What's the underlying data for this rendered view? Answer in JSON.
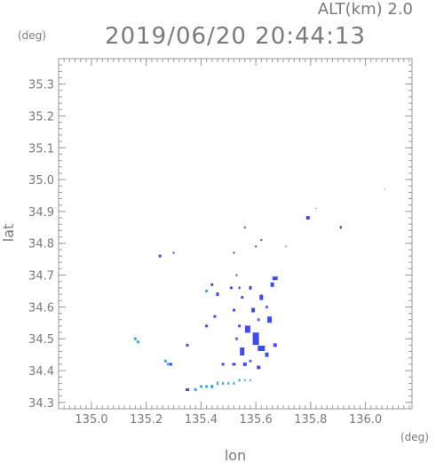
{
  "header": {
    "altitude": "ALT(km)  2.0",
    "datetime": "2019/06/20 20:44:13"
  },
  "chart_data": {
    "type": "scatter",
    "xlabel": "lon",
    "ylabel": "lat",
    "x_unit": "(deg)",
    "y_unit": "(deg)",
    "xlim": [
      134.88,
      136.17
    ],
    "ylim": [
      34.28,
      35.38
    ],
    "xticks": [
      "135.0",
      "135.2",
      "135.4",
      "135.6",
      "135.8",
      "136.0"
    ],
    "yticks": [
      "34.3",
      "34.4",
      "34.5",
      "34.6",
      "34.7",
      "34.8",
      "34.9",
      "35.0",
      "35.1",
      "35.2",
      "35.3"
    ],
    "grid": false,
    "colors": {
      "strong": "#3d4cf0",
      "medium": "#5a6cf5",
      "light": "#38a8ee",
      "dark": "#6a2fa0"
    },
    "series": [
      {
        "points": [
          [
            135.6,
            34.5,
            7,
            14,
            "strong"
          ],
          [
            135.57,
            34.53,
            6,
            8,
            "strong"
          ],
          [
            135.62,
            34.47,
            8,
            6,
            "strong"
          ],
          [
            135.55,
            34.46,
            5,
            9,
            "strong"
          ],
          [
            135.65,
            34.56,
            5,
            7,
            "strong"
          ],
          [
            135.59,
            34.59,
            4,
            5,
            "strong"
          ],
          [
            135.62,
            34.63,
            4,
            6,
            "strong"
          ],
          [
            135.66,
            34.67,
            4,
            5,
            "strong"
          ],
          [
            135.67,
            34.69,
            6,
            4,
            "strong"
          ],
          [
            135.55,
            34.63,
            3,
            3,
            "strong"
          ],
          [
            135.58,
            34.66,
            3,
            4,
            "strong"
          ],
          [
            135.52,
            34.59,
            3,
            3,
            "strong"
          ],
          [
            135.64,
            34.45,
            4,
            5,
            "strong"
          ],
          [
            135.67,
            34.48,
            4,
            4,
            "strong"
          ],
          [
            135.56,
            34.42,
            4,
            4,
            "strong"
          ],
          [
            135.61,
            34.41,
            4,
            4,
            "strong"
          ],
          [
            135.52,
            34.42,
            4,
            3,
            "strong"
          ],
          [
            135.48,
            34.42,
            3,
            3,
            "strong"
          ],
          [
            135.54,
            34.54,
            3,
            3,
            "strong"
          ],
          [
            135.58,
            34.43,
            3,
            3,
            "medium"
          ],
          [
            135.64,
            34.6,
            3,
            3,
            "medium"
          ],
          [
            135.61,
            34.56,
            3,
            3,
            "medium"
          ],
          [
            135.53,
            34.5,
            3,
            3,
            "medium"
          ],
          [
            135.45,
            34.57,
            3,
            3,
            "strong"
          ],
          [
            135.42,
            34.54,
            3,
            3,
            "strong"
          ],
          [
            135.46,
            34.64,
            3,
            4,
            "strong"
          ],
          [
            135.42,
            34.65,
            3,
            3,
            "light"
          ],
          [
            135.44,
            34.67,
            3,
            3,
            "strong"
          ],
          [
            135.51,
            34.66,
            3,
            3,
            "strong"
          ],
          [
            135.54,
            34.66,
            2,
            3,
            "strong"
          ],
          [
            135.53,
            34.7,
            2,
            2,
            "strong"
          ],
          [
            135.35,
            34.48,
            3,
            3,
            "strong"
          ],
          [
            135.25,
            34.76,
            3,
            3,
            "strong"
          ],
          [
            135.3,
            34.77,
            2,
            2,
            "strong"
          ],
          [
            135.52,
            34.77,
            2,
            2,
            "strong"
          ],
          [
            135.6,
            34.79,
            2,
            2,
            "strong"
          ],
          [
            135.62,
            34.81,
            2,
            2,
            "strong"
          ],
          [
            135.56,
            34.85,
            2,
            2,
            "strong"
          ],
          [
            135.79,
            34.88,
            4,
            4,
            "strong"
          ],
          [
            135.91,
            34.85,
            2,
            3,
            "dark"
          ],
          [
            135.82,
            34.91,
            1,
            1,
            "strong"
          ],
          [
            136.07,
            34.97,
            1,
            1,
            "strong"
          ],
          [
            135.71,
            34.79,
            1,
            2,
            "strong"
          ],
          [
            135.16,
            34.5,
            3,
            3,
            "light"
          ],
          [
            135.17,
            34.49,
            3,
            3,
            "light"
          ],
          [
            135.27,
            34.43,
            3,
            3,
            "light"
          ],
          [
            135.28,
            34.42,
            3,
            3,
            "light"
          ],
          [
            135.29,
            34.42,
            3,
            3,
            "strong"
          ],
          [
            135.35,
            34.34,
            4,
            3,
            "strong"
          ],
          [
            135.38,
            34.34,
            3,
            3,
            "light"
          ],
          [
            135.4,
            34.35,
            3,
            3,
            "light"
          ],
          [
            135.42,
            34.35,
            3,
            3,
            "light"
          ],
          [
            135.44,
            34.35,
            3,
            4,
            "light"
          ],
          [
            135.46,
            34.36,
            2,
            4,
            "light"
          ],
          [
            135.48,
            34.36,
            2,
            3,
            "light"
          ],
          [
            135.5,
            34.36,
            2,
            3,
            "light"
          ],
          [
            135.52,
            34.36,
            2,
            3,
            "light"
          ],
          [
            135.54,
            34.37,
            2,
            3,
            "light"
          ],
          [
            135.56,
            34.37,
            2,
            2,
            "light"
          ],
          [
            135.58,
            34.37,
            2,
            2,
            "light"
          ]
        ]
      }
    ]
  }
}
